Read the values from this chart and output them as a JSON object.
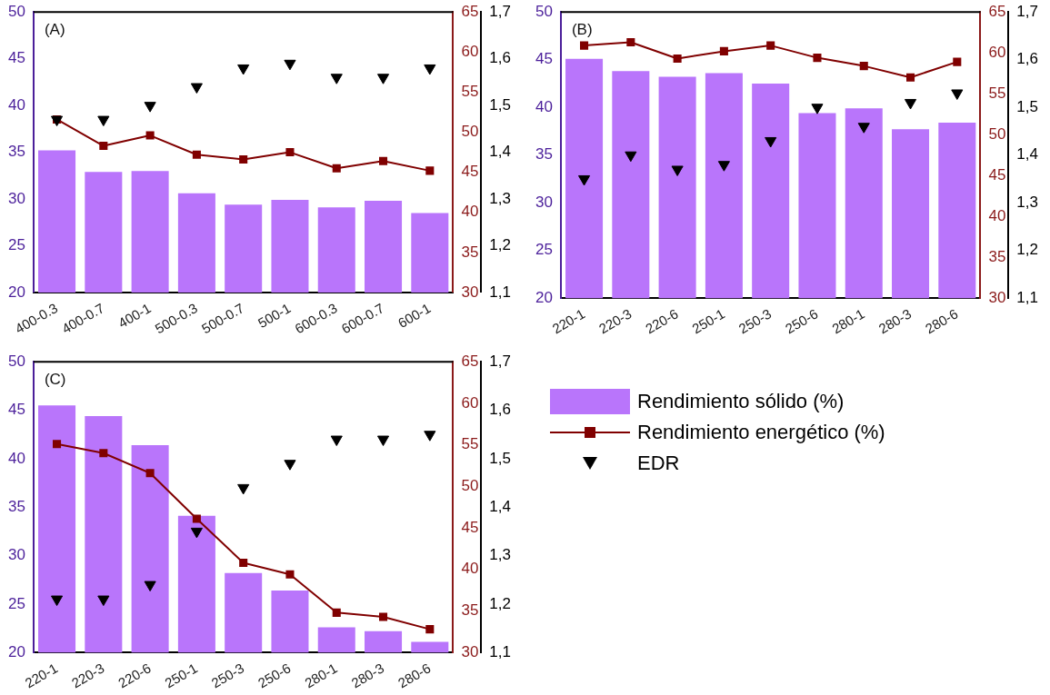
{
  "chart_data": [
    {
      "type": "bar",
      "annotations": [
        "(A)"
      ],
      "categories": [
        "400-0.3",
        "400-0.7",
        "400-1",
        "500-0.3",
        "500-0.7",
        "500-1",
        "600-0.3",
        "600-0.7",
        "600-1"
      ],
      "ylim": [
        20,
        50
      ],
      "yticks": [
        20,
        25,
        30,
        35,
        40,
        45,
        50
      ],
      "y2lim": [
        30,
        65
      ],
      "y2ticks": [
        30,
        35,
        40,
        45,
        50,
        55,
        60,
        65
      ],
      "y3lim": [
        1.1,
        1.7
      ],
      "y3ticks": [
        {
          "value": 1.1,
          "label": "1,1"
        },
        {
          "value": 1.2,
          "label": "1,2"
        },
        {
          "value": 1.3,
          "label": "1,3"
        },
        {
          "value": 1.4,
          "label": "1,4"
        },
        {
          "value": 1.5,
          "label": "1,5"
        },
        {
          "value": 1.6,
          "label": "1,6"
        },
        {
          "value": 1.7,
          "label": "1,7"
        }
      ],
      "grid": false,
      "legend": false,
      "series": [
        {
          "color": "#b975fb",
          "values": [
            35.2,
            32.9,
            33.0,
            30.6,
            29.4,
            29.9,
            29.1,
            29.8,
            28.5
          ]
        },
        {
          "type": "line",
          "axis": "y2",
          "color": "#800000",
          "marker": "square",
          "values": [
            51.6,
            48.3,
            49.6,
            47.2,
            46.6,
            47.5,
            45.5,
            46.4,
            45.2
          ]
        },
        {
          "type": "scatter",
          "axis": "y3",
          "color": "#000000",
          "marker": "triangle",
          "values": [
            1.47,
            1.47,
            1.5,
            1.54,
            1.58,
            1.59,
            1.56,
            1.56,
            1.58
          ]
        }
      ]
    },
    {
      "type": "bar",
      "annotations": [
        "(B)"
      ],
      "categories": [
        "220-1",
        "220-3",
        "220-6",
        "250-1",
        "250-3",
        "250-6",
        "280-1",
        "280-3",
        "280-6"
      ],
      "ylim": [
        20,
        50
      ],
      "yticks": [
        20,
        25,
        30,
        35,
        40,
        45,
        50
      ],
      "y2lim": [
        30,
        65
      ],
      "y2ticks": [
        30,
        35,
        40,
        45,
        50,
        55,
        60,
        65
      ],
      "y3lim": [
        1.1,
        1.7
      ],
      "y3ticks": [
        {
          "value": 1.1,
          "label": "1,1"
        },
        {
          "value": 1.2,
          "label": "1,2"
        },
        {
          "value": 1.3,
          "label": "1,3"
        },
        {
          "value": 1.4,
          "label": "1,4"
        },
        {
          "value": 1.5,
          "label": "1,5"
        },
        {
          "value": 1.6,
          "label": "1,6"
        },
        {
          "value": 1.7,
          "label": "1,7"
        }
      ],
      "grid": false,
      "legend": false,
      "series": [
        {
          "color": "#b975fb",
          "values": [
            45.1,
            43.8,
            43.2,
            43.6,
            42.5,
            39.4,
            39.9,
            37.7,
            38.4
          ]
        },
        {
          "type": "line",
          "axis": "y2",
          "color": "#800000",
          "marker": "square",
          "values": [
            60.9,
            61.3,
            59.3,
            60.2,
            60.9,
            59.4,
            58.4,
            57.0,
            58.9
          ]
        },
        {
          "type": "scatter",
          "axis": "y3",
          "color": "#000000",
          "marker": "triangle",
          "values": [
            1.35,
            1.4,
            1.37,
            1.38,
            1.43,
            1.5,
            1.46,
            1.51,
            1.53
          ]
        }
      ]
    },
    {
      "type": "bar",
      "annotations": [
        "(C)"
      ],
      "categories": [
        "220-1",
        "220-3",
        "220-6",
        "250-1",
        "250-3",
        "250-6",
        "280-1",
        "280-3",
        "280-6"
      ],
      "ylim": [
        20,
        50
      ],
      "yticks": [
        20,
        25,
        30,
        35,
        40,
        45,
        50
      ],
      "y2lim": [
        30,
        65
      ],
      "y2ticks": [
        30,
        35,
        40,
        45,
        50,
        55,
        60,
        65
      ],
      "y3lim": [
        1.1,
        1.7
      ],
      "y3ticks": [
        {
          "value": 1.1,
          "label": "1,1"
        },
        {
          "value": 1.2,
          "label": "1,2"
        },
        {
          "value": 1.3,
          "label": "1,3"
        },
        {
          "value": 1.4,
          "label": "1,4"
        },
        {
          "value": 1.5,
          "label": "1,5"
        },
        {
          "value": 1.6,
          "label": "1,6"
        },
        {
          "value": 1.7,
          "label": "1,7"
        }
      ],
      "grid": false,
      "legend": "right",
      "series": [
        {
          "name": "Rendimiento sólido (%)",
          "color": "#b975fb",
          "values": [
            45.5,
            44.4,
            41.4,
            34.1,
            28.2,
            26.4,
            22.6,
            22.2,
            21.1
          ]
        },
        {
          "type": "line",
          "axis": "y2",
          "name": "Rendimiento energético (%)",
          "color": "#800000",
          "marker": "square",
          "values": [
            55.1,
            54.0,
            51.6,
            46.1,
            40.8,
            39.4,
            34.8,
            34.3,
            32.8
          ]
        },
        {
          "type": "scatter",
          "axis": "y3",
          "name": "EDR",
          "color": "#000000",
          "marker": "triangle",
          "values": [
            1.21,
            1.21,
            1.24,
            1.35,
            1.44,
            1.49,
            1.54,
            1.54,
            1.55
          ]
        }
      ]
    }
  ]
}
